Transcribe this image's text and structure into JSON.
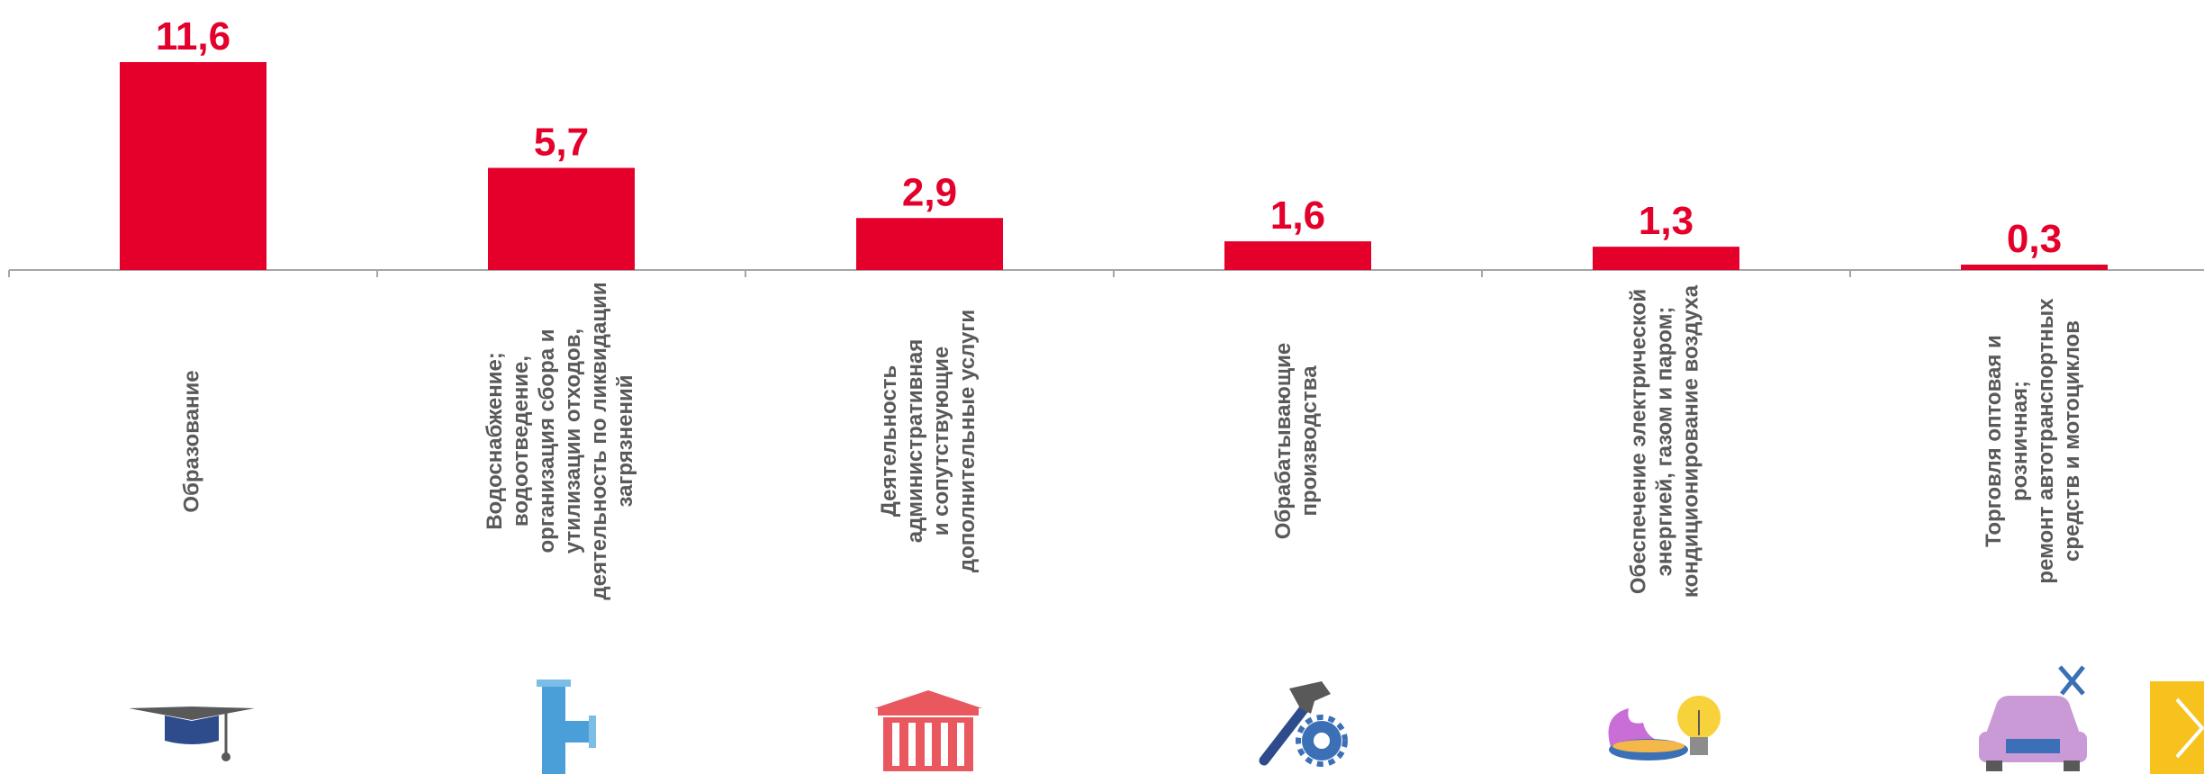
{
  "chart_data": {
    "type": "bar",
    "categories": [
      "Образование",
      "Водоснабжение;\nводоотведение,\nорганизация сбора и\nутилизации отходов,\nдеятельность по ликвидации\nзагрязнений",
      "Деятельность\nадминистративная\nи сопутствующие\nдополнительные услуги",
      "Обрабатывающие\nпроизводства",
      "Обеспечение электрической\nэнергией, газом и паром;\nкондиционирование воздуха",
      "Торговля оптовая и розничная;\nремонт автотранспортных\nсредств и мотоциклов"
    ],
    "values": [
      11.6,
      5.7,
      2.9,
      1.6,
      1.3,
      0.3
    ],
    "value_labels": [
      "11,6",
      "5,7",
      "2,9",
      "1,6",
      "1,3",
      "0,3"
    ],
    "ylim": [
      0,
      11.6
    ],
    "grid": false,
    "bar_color": "#e4002b",
    "label_color": "#e4002b",
    "axis_color": "#a6a6a6"
  },
  "icons": [
    "graduation-cap-icon",
    "water-pipe-icon",
    "government-building-icon",
    "hammer-gear-icon",
    "gas-flame-lightbulb-icon",
    "car-repair-icon"
  ],
  "nav": {
    "next_icon": "chevron-right-icon",
    "next_color": "#f7c21e"
  }
}
